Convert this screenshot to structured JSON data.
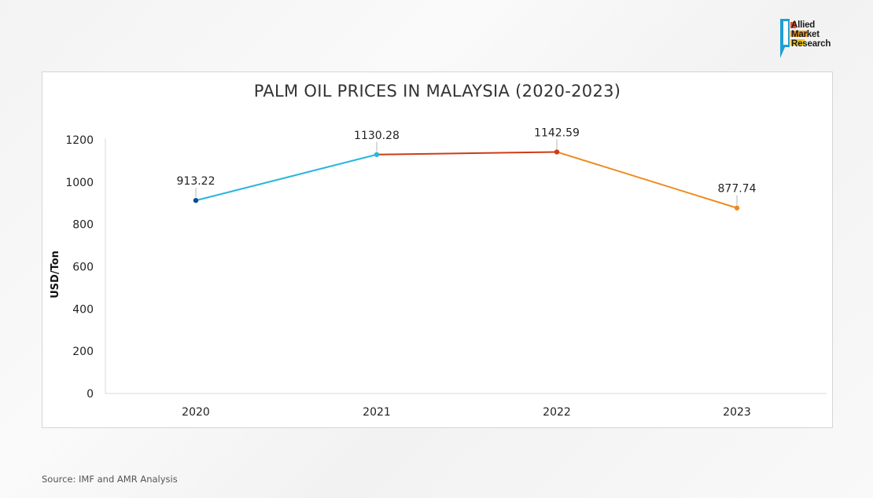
{
  "brand": {
    "line1": "Allied",
    "line2": "Market",
    "line3": "Research",
    "colors": [
      "#e8502a",
      "#f29a1f",
      "#f5c518",
      "#1f9fd6"
    ]
  },
  "source": "Source: IMF and AMR Analysis",
  "chart_data": {
    "type": "line",
    "title": "PALM OIL PRICES IN MALAYSIA (2020-2023)",
    "ylabel": "USD/Ton",
    "xlabel": "",
    "categories": [
      "2020",
      "2021",
      "2022",
      "2023"
    ],
    "values": [
      913.22,
      1130.28,
      1142.59,
      877.74
    ],
    "value_labels": [
      "913.22",
      "1130.28",
      "1142.59",
      "877.74"
    ],
    "ylim": [
      0,
      1200
    ],
    "yticks": [
      0,
      200,
      400,
      600,
      800,
      1000,
      1200
    ],
    "point_colors": [
      "#0b4e91",
      "#29b5e0",
      "#cf3b16",
      "#ee8b1c"
    ],
    "segment_colors": [
      "#29b5e0",
      "#cf3b16",
      "#ee8b1c"
    ],
    "grid": false,
    "legend": "none"
  }
}
